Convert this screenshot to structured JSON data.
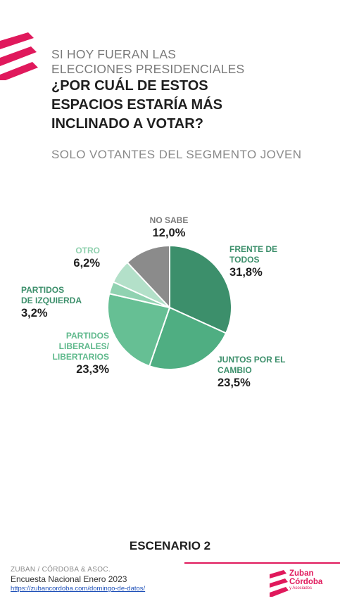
{
  "header": {
    "pre_title_line1": "SI HOY FUERAN LAS",
    "pre_title_line2": "ELECCIONES PRESIDENCIALES",
    "question_line1": "¿POR CUÁL DE ESTOS",
    "question_line2": "ESPACIOS ESTARÍA MÁS",
    "question_line3": "INCLINADO A VOTAR?",
    "subtitle": "SOLO VOTANTES DEL SEGMENTO JOVEN"
  },
  "chart_data": {
    "type": "pie",
    "start": "12 o'clock",
    "direction": "clockwise",
    "slices": [
      {
        "label_lines": [
          "FRENTE DE",
          "TODOS"
        ],
        "value": 31.8,
        "value_text": "31,8%",
        "color": "#3c8f6b",
        "label_color": "#3c8f6b"
      },
      {
        "label_lines": [
          "JUNTOS POR EL",
          "CAMBIO"
        ],
        "value": 23.5,
        "value_text": "23,5%",
        "color": "#4fae82",
        "label_color": "#3c8f6b"
      },
      {
        "label_lines": [
          "PARTIDOS",
          "LIBERALES/",
          "LIBERTARIOS"
        ],
        "value": 23.3,
        "value_text": "23,3%",
        "color": "#66bf94",
        "label_color": "#5fb98c"
      },
      {
        "label_lines": [
          "PARTIDOS",
          "DE IZQUIERDA"
        ],
        "value": 3.2,
        "value_text": "3,2%",
        "color": "#90d2b1",
        "label_color": "#3c8f6b"
      },
      {
        "label_lines": [
          "OTRO"
        ],
        "value": 6.2,
        "value_text": "6,2%",
        "color": "#b3e0c9",
        "label_color": "#8fd0ae"
      },
      {
        "label_lines": [
          "NO SABE"
        ],
        "value": 12.0,
        "value_text": "12,0%",
        "color": "#8b8b8b",
        "label_color": "#7a7a7a"
      }
    ]
  },
  "footer": {
    "scenario": "ESCENARIO 2",
    "source": "ZUBAN / CÓRDOBA & ASOC.",
    "survey": "Encuesta Nacional Enero 2023",
    "url": "https://zubancordoba.com/domingo-de-datos/",
    "brand_line1": "Zuban",
    "brand_line2": "Córdoba",
    "brand_line3": "y Asociados"
  },
  "colors": {
    "accent": "#e0195c"
  }
}
